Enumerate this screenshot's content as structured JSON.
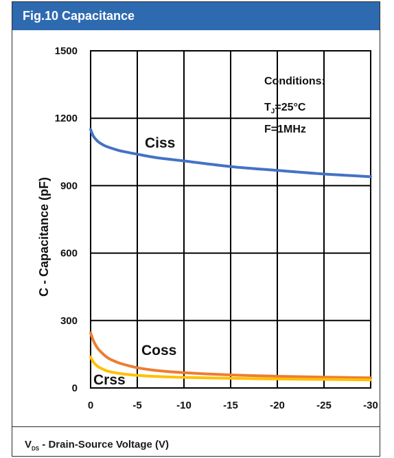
{
  "title": "Fig.10 Capacitance",
  "footer": {
    "prefix": "V",
    "subscript": "DS",
    "suffix": " - Drain-Source Voltage (V)"
  },
  "conditions": {
    "line1": "Conditions:",
    "line2_prefix": "T",
    "line2_sub": "J",
    "line2_suffix": "=25°C",
    "line3": "F=1MHz"
  },
  "chart_data": {
    "type": "line",
    "ylabel": "C - Capacitance (pF)",
    "ylim": [
      0,
      1500
    ],
    "xlim": [
      0,
      -30
    ],
    "x_ticks": [
      "0",
      "-5",
      "-10",
      "-15",
      "-20",
      "-25",
      "-30"
    ],
    "y_ticks": [
      "0",
      "300",
      "600",
      "900",
      "1200",
      "1500"
    ],
    "grid": true,
    "series": [
      {
        "name": "Ciss",
        "color": "#4472c4",
        "x": [
          0,
          -0.3,
          -0.7,
          -1,
          -1.5,
          -2,
          -3,
          -4,
          -5,
          -7,
          -10,
          -15,
          -20,
          -25,
          -30
        ],
        "y": [
          1150,
          1120,
          1100,
          1090,
          1078,
          1070,
          1057,
          1048,
          1040,
          1025,
          1010,
          985,
          968,
          952,
          940
        ]
      },
      {
        "name": "Coss",
        "color": "#ed7d31",
        "x": [
          0,
          -0.3,
          -0.7,
          -1,
          -1.5,
          -2,
          -3,
          -4,
          -5,
          -7,
          -10,
          -15,
          -20,
          -25,
          -30
        ],
        "y": [
          245,
          210,
          180,
          165,
          145,
          130,
          112,
          100,
          90,
          78,
          68,
          58,
          52,
          48,
          45
        ]
      },
      {
        "name": "Crss",
        "color": "#ffc000",
        "x": [
          0,
          -0.3,
          -0.7,
          -1,
          -1.5,
          -2,
          -3,
          -4,
          -5,
          -7,
          -10,
          -15,
          -20,
          -25,
          -30
        ],
        "y": [
          138,
          115,
          98,
          90,
          80,
          73,
          65,
          60,
          56,
          51,
          47,
          43,
          40,
          38,
          36
        ]
      }
    ]
  }
}
